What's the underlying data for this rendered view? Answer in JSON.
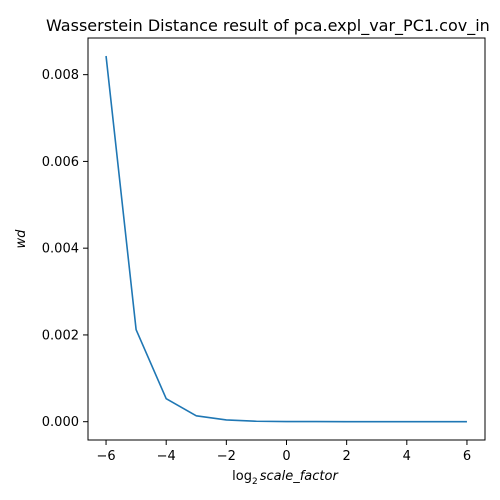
{
  "chart_data": {
    "type": "line",
    "title": "Wasserstein Distance result of pca.expl_var_PC1.cov_in",
    "xlabel_prefix": "log",
    "xlabel_subscript": "2",
    "xlabel_var": "scale_factor",
    "ylabel": "wd",
    "xlim": [
      -6.6,
      6.6
    ],
    "ylim": [
      -0.000422,
      0.008845
    ],
    "x_ticks": [
      -6,
      -4,
      -2,
      0,
      2,
      4,
      6
    ],
    "x_tick_labels": [
      "−6",
      "−4",
      "−2",
      "0",
      "2",
      "4",
      "6"
    ],
    "y_ticks": [
      0.0,
      0.002,
      0.004,
      0.006,
      0.008
    ],
    "y_tick_labels": [
      "0.000",
      "0.002",
      "0.004",
      "0.006",
      "0.008"
    ],
    "grid": false,
    "series": [
      {
        "color": "#1f77b4",
        "x": [
          -6,
          -5,
          -4,
          -3,
          -2,
          -1,
          0,
          1,
          2,
          3,
          4,
          5,
          6
        ],
        "y": [
          0.00843,
          0.00212,
          0.00053,
          0.000135,
          4e-05,
          1e-05,
          3e-06,
          2e-06,
          1e-06,
          1e-06,
          1e-06,
          1e-06,
          1e-06
        ]
      }
    ]
  }
}
